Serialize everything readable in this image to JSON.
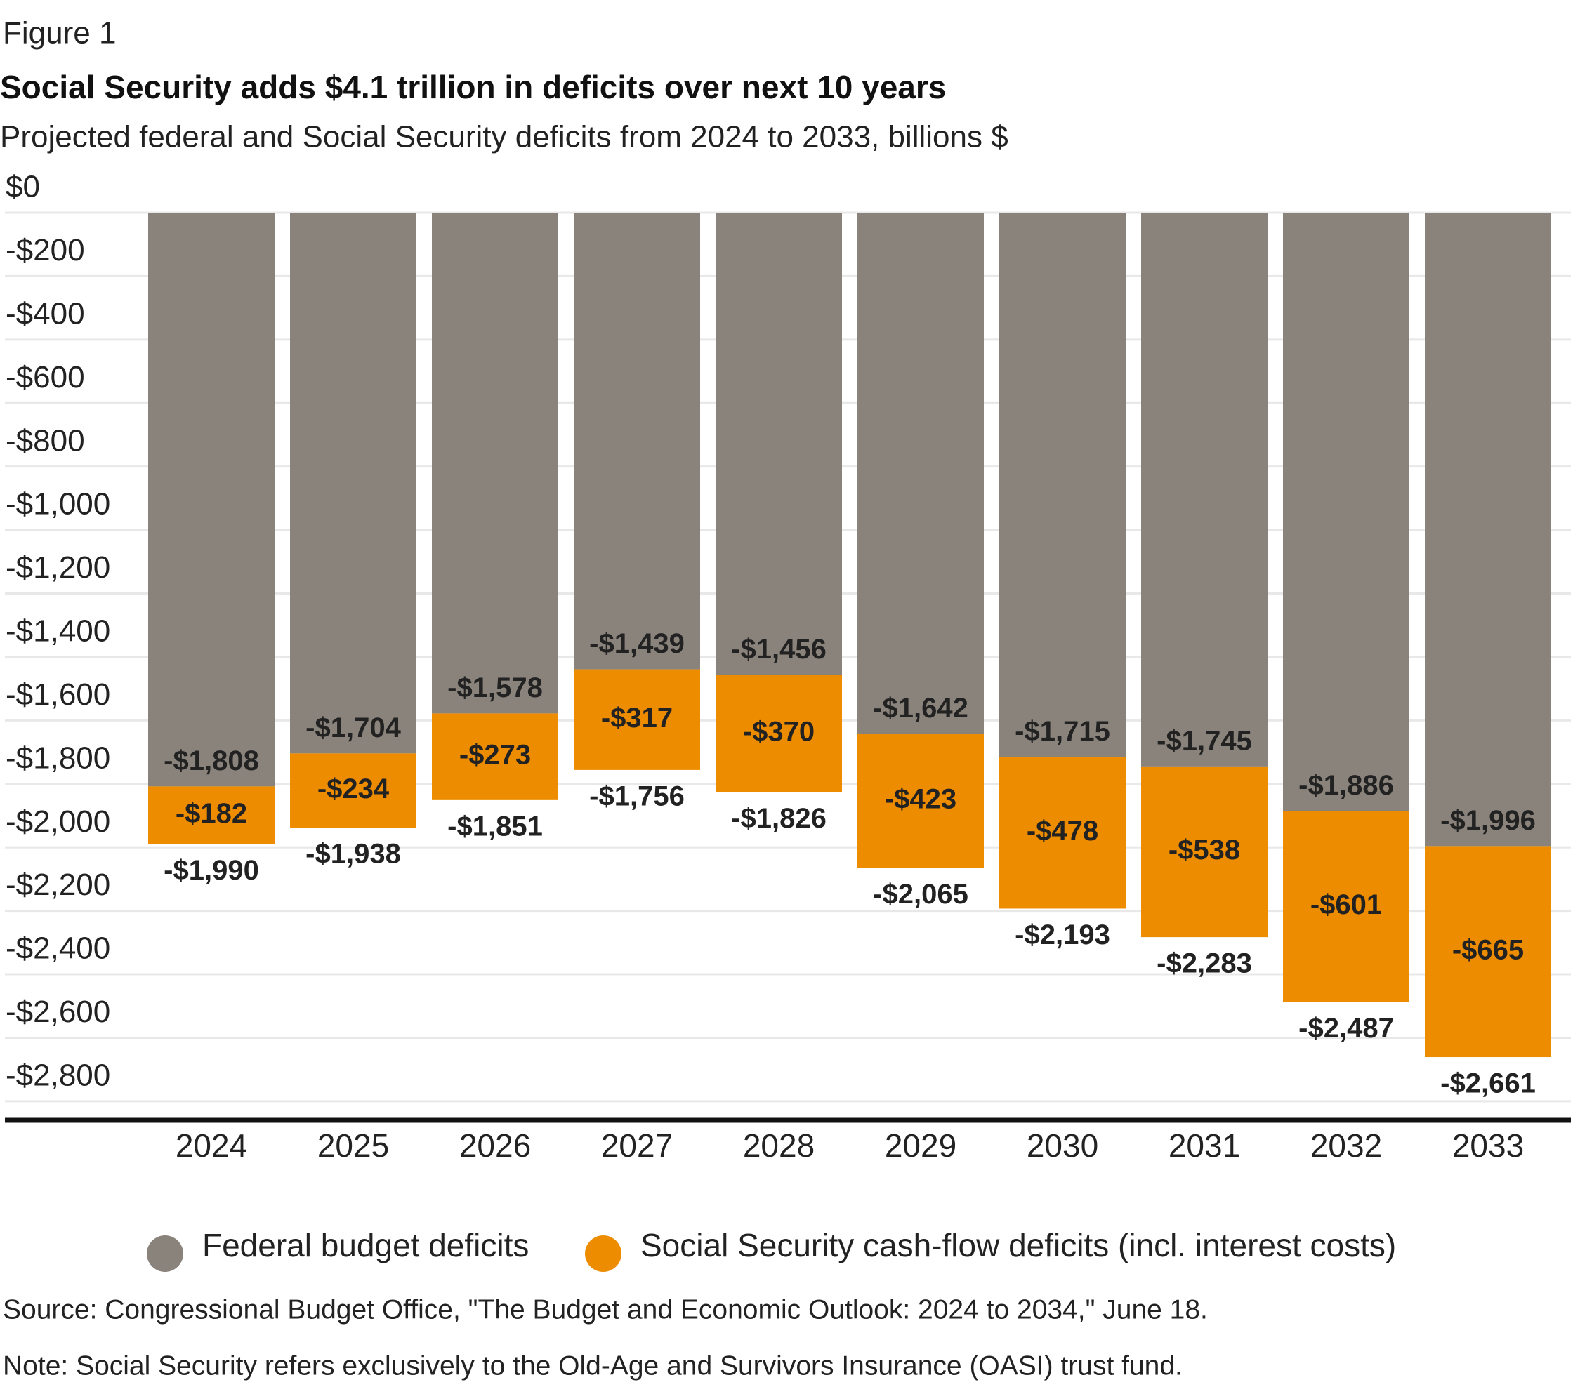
{
  "chart_data": {
    "type": "bar",
    "stacked": true,
    "figure_label": "Figure 1",
    "title": "Social Security adds $4.1 trillion in deficits over next 10 years",
    "subtitle": "Projected federal and Social Security deficits from 2024 to 2033, billions $",
    "categories": [
      "2024",
      "2025",
      "2026",
      "2027",
      "2028",
      "2029",
      "2030",
      "2031",
      "2032",
      "2033"
    ],
    "series": [
      {
        "name": "Federal budget deficits",
        "color": "#8a837b",
        "values": [
          -1808,
          -1704,
          -1578,
          -1439,
          -1456,
          -1642,
          -1715,
          -1745,
          -1886,
          -1996
        ],
        "value_labels": [
          "-$1,808",
          "-$1,704",
          "-$1,578",
          "-$1,439",
          "-$1,456",
          "-$1,642",
          "-$1,715",
          "-$1,745",
          "-$1,886",
          "-$1,996"
        ]
      },
      {
        "name": "Social Security cash-flow deficits (incl. interest costs)",
        "color": "#ee8c00",
        "values": [
          -182,
          -234,
          -273,
          -317,
          -370,
          -423,
          -478,
          -538,
          -601,
          -665
        ],
        "value_labels": [
          "-$182",
          "-$234",
          "-$273",
          "-$317",
          "-$370",
          "-$423",
          "-$478",
          "-$538",
          "-$601",
          "-$665"
        ]
      }
    ],
    "totals": {
      "values": [
        -1990,
        -1938,
        -1851,
        -1756,
        -1826,
        -2065,
        -2193,
        -2283,
        -2487,
        -2661
      ],
      "value_labels": [
        "-$1,990",
        "-$1,938",
        "-$1,851",
        "-$1,756",
        "-$1,826",
        "-$2,065",
        "-$2,193",
        "-$2,283",
        "-$2,487",
        "-$2,661"
      ]
    },
    "ylim": [
      -2860,
      0
    ],
    "yticks": [
      {
        "value": 0,
        "label": "$0"
      },
      {
        "value": -200,
        "label": "-$200"
      },
      {
        "value": -400,
        "label": "-$400"
      },
      {
        "value": -600,
        "label": "-$600"
      },
      {
        "value": -800,
        "label": "-$800"
      },
      {
        "value": -1000,
        "label": "-$1,000"
      },
      {
        "value": -1200,
        "label": "-$1,200"
      },
      {
        "value": -1400,
        "label": "-$1,400"
      },
      {
        "value": -1600,
        "label": "-$1,600"
      },
      {
        "value": -1800,
        "label": "-$1,800"
      },
      {
        "value": -2000,
        "label": "-$2,000"
      },
      {
        "value": -2200,
        "label": "-$2,200"
      },
      {
        "value": -2400,
        "label": "-$2,400"
      },
      {
        "value": -2600,
        "label": "-$2,600"
      },
      {
        "value": -2800,
        "label": "-$2,800"
      }
    ],
    "grid": true,
    "legend": "bottom",
    "source": "Source: Congressional Budget Office, \"The Budget and Economic Outlook: 2024 to 2034,\" June 18.",
    "note": "Note: Social Security refers exclusively to the Old-Age and Survivors Insurance (OASI) trust fund."
  }
}
